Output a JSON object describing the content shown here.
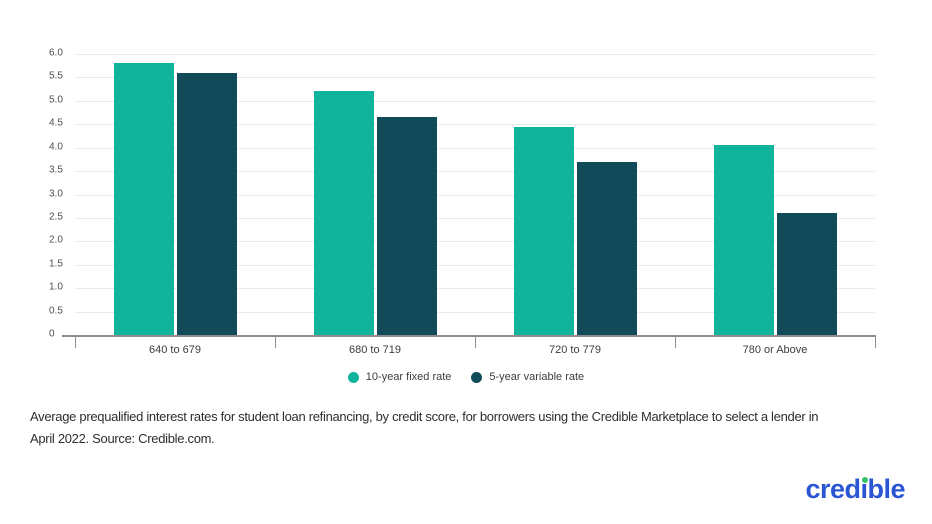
{
  "chart_data": {
    "type": "bar",
    "title": "",
    "xlabel": "",
    "ylabel": "",
    "categories": [
      "640 to 679",
      "680 to 719",
      "720 to 779",
      "780 or Above"
    ],
    "series": [
      {
        "name": "10-year fixed rate",
        "color": "#10b49c",
        "values": [
          5.8,
          5.2,
          4.45,
          4.05
        ]
      },
      {
        "name": "5-year variable rate",
        "color": "#114b5a",
        "values": [
          5.6,
          4.65,
          3.7,
          2.6
        ]
      }
    ],
    "ylim": [
      0,
      6
    ],
    "ytick_step": 0.5,
    "yticks": [
      "6.0",
      "5.5",
      "5.0",
      "4.5",
      "4.0",
      "3.5",
      "3.0",
      "2.5",
      "2.0",
      "1.5",
      "1.0",
      "0.5",
      "0"
    ],
    "grid": true,
    "legend_position": "bottom",
    "grid_color": "#e9e9e9",
    "axis_color": "#8d8d8d"
  },
  "caption": {
    "line1": "Average prequalified interest rates for student loan refinancing, by credit score, for borrowers using the Credible Marketplace to select a lender in",
    "line2": "April 2022. Source: Credible.com."
  },
  "footer": {
    "logo_text": "credible",
    "logo_color": "#2a56d3",
    "logo_dot_color": "#35c26b"
  }
}
